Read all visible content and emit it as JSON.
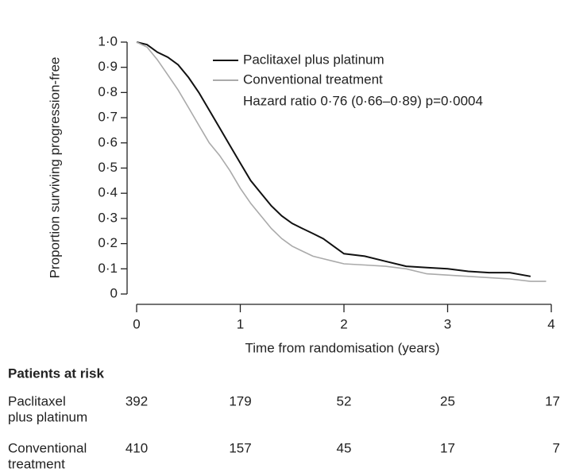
{
  "chart_data": {
    "type": "line",
    "ylabel": "Proportion surviving progression-free",
    "xlabel": "Time from randomisation (years)",
    "annotation": "Hazard ratio 0·76 (0·66–0·89) p=0·0004",
    "xlim": [
      0,
      4
    ],
    "xticks": [
      0,
      1,
      2,
      3,
      4
    ],
    "ylim": [
      0,
      1
    ],
    "yticks": [
      {
        "value": 0,
        "label": "0"
      },
      {
        "value": 0.1,
        "label": "0·1"
      },
      {
        "value": 0.2,
        "label": "0·2"
      },
      {
        "value": 0.3,
        "label": "0·3"
      },
      {
        "value": 0.4,
        "label": "0·4"
      },
      {
        "value": 0.5,
        "label": "0·5"
      },
      {
        "value": 0.6,
        "label": "0·6"
      },
      {
        "value": 0.7,
        "label": "0·7"
      },
      {
        "value": 0.8,
        "label": "0·8"
      },
      {
        "value": 0.9,
        "label": "0·9"
      },
      {
        "value": 1,
        "label": "1·0"
      }
    ],
    "series": [
      {
        "name": "Paclitaxel plus platinum",
        "color": "#111111",
        "x": [
          0,
          0.1,
          0.2,
          0.3,
          0.4,
          0.5,
          0.6,
          0.7,
          0.8,
          0.9,
          1.0,
          1.1,
          1.2,
          1.3,
          1.4,
          1.5,
          1.6,
          1.7,
          1.8,
          1.9,
          2.0,
          2.2,
          2.4,
          2.6,
          2.8,
          3.0,
          3.2,
          3.4,
          3.6,
          3.8
        ],
        "values": [
          1.0,
          0.99,
          0.96,
          0.94,
          0.91,
          0.86,
          0.8,
          0.73,
          0.66,
          0.59,
          0.52,
          0.45,
          0.4,
          0.35,
          0.31,
          0.28,
          0.26,
          0.24,
          0.22,
          0.19,
          0.16,
          0.15,
          0.13,
          0.11,
          0.105,
          0.1,
          0.09,
          0.085,
          0.085,
          0.07
        ]
      },
      {
        "name": "Conventional treatment",
        "color": "#aaaaaa",
        "x": [
          0,
          0.1,
          0.2,
          0.3,
          0.4,
          0.5,
          0.6,
          0.7,
          0.8,
          0.9,
          1.0,
          1.1,
          1.2,
          1.3,
          1.4,
          1.5,
          1.6,
          1.7,
          1.8,
          1.9,
          2.0,
          2.2,
          2.4,
          2.6,
          2.8,
          3.0,
          3.2,
          3.4,
          3.6,
          3.8,
          3.95
        ],
        "values": [
          1.0,
          0.98,
          0.93,
          0.87,
          0.81,
          0.74,
          0.67,
          0.6,
          0.55,
          0.49,
          0.42,
          0.36,
          0.31,
          0.26,
          0.22,
          0.19,
          0.17,
          0.15,
          0.14,
          0.13,
          0.12,
          0.115,
          0.11,
          0.1,
          0.08,
          0.075,
          0.07,
          0.065,
          0.06,
          0.05,
          0.05
        ]
      }
    ],
    "risk_table": {
      "title": "Patients at risk",
      "rows": [
        {
          "label": [
            "Paclitaxel",
            "plus platinum"
          ],
          "counts": [
            392,
            179,
            52,
            25,
            17
          ]
        },
        {
          "label": [
            "Conventional",
            "treatment"
          ],
          "counts": [
            410,
            157,
            45,
            17,
            7
          ]
        }
      ]
    }
  }
}
